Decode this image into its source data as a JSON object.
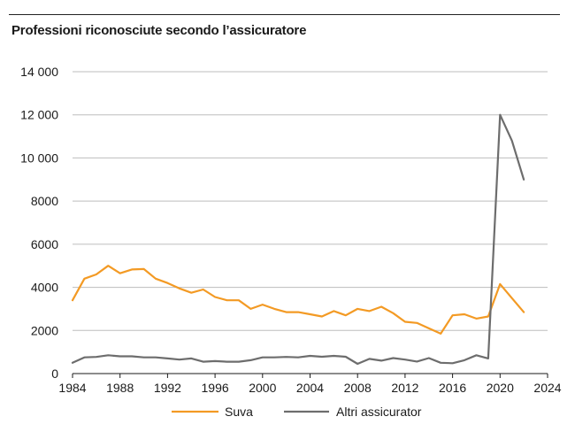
{
  "chart_data": {
    "type": "line",
    "title": "Professioni riconosciute secondo l’assicuratore",
    "xlabel": "",
    "ylabel": "",
    "xlim": [
      1984,
      2024
    ],
    "ylim": [
      0,
      14000
    ],
    "x_ticks": [
      "1984",
      "1988",
      "1992",
      "1996",
      "2000",
      "2004",
      "2008",
      "2012",
      "2016",
      "2020",
      "2024"
    ],
    "y_ticks": [
      "0",
      "2000",
      "4000",
      "6000",
      "8000",
      "10 000",
      "12 000",
      "14 000"
    ],
    "grid": "horizontal",
    "legend": "bottom",
    "x": [
      1984,
      1985,
      1986,
      1987,
      1988,
      1989,
      1990,
      1991,
      1992,
      1993,
      1994,
      1995,
      1996,
      1997,
      1998,
      1999,
      2000,
      2001,
      2002,
      2003,
      2004,
      2005,
      2006,
      2007,
      2008,
      2009,
      2010,
      2011,
      2012,
      2013,
      2014,
      2015,
      2016,
      2017,
      2018,
      2019,
      2020,
      2021,
      2022
    ],
    "series": [
      {
        "name": "Suva",
        "color": "#f39a24",
        "values": [
          3400,
          4400,
          4600,
          5000,
          4650,
          4830,
          4850,
          4400,
          4200,
          3950,
          3750,
          3900,
          3550,
          3400,
          3400,
          3000,
          3200,
          3000,
          2850,
          2850,
          2750,
          2650,
          2900,
          2700,
          3000,
          2900,
          3100,
          2800,
          2400,
          2350,
          2100,
          1850,
          2700,
          2750,
          2550,
          2650,
          4150,
          3500,
          2850
        ]
      },
      {
        "name": "Altri assicurator",
        "color": "#6d6d6d",
        "values": [
          500,
          750,
          770,
          850,
          800,
          800,
          750,
          750,
          700,
          650,
          700,
          550,
          580,
          550,
          550,
          620,
          750,
          750,
          770,
          750,
          820,
          780,
          820,
          780,
          450,
          680,
          600,
          720,
          650,
          560,
          720,
          500,
          480,
          620,
          850,
          700,
          12000,
          10800,
          9000
        ]
      }
    ]
  }
}
